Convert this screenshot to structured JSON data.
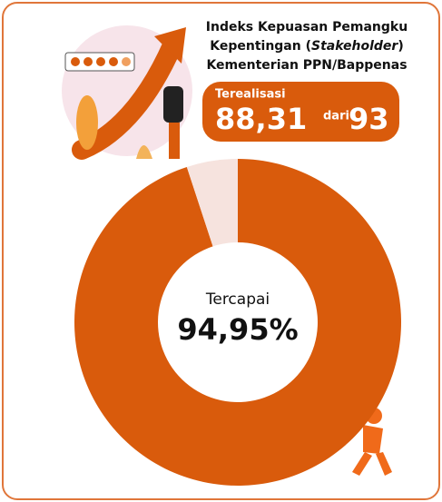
{
  "chart_data": {
    "type": "donut",
    "title_lines": [
      [
        "Indeks Kepuasan Pemangku"
      ],
      [
        "Kepentingan (",
        "Stakeholder",
        ")"
      ],
      [
        "Kementerian PPN/Bappenas"
      ]
    ],
    "realized_label": "Terealisasi",
    "realized_value": "88,31",
    "connector": "dari",
    "target_value": "93",
    "center_label": "Tercapai",
    "values": [
      94.95,
      5.05
    ],
    "value_labels": [
      "94,95%",
      null
    ],
    "colors": [
      "#d95b0c",
      "#f6e3de"
    ]
  }
}
